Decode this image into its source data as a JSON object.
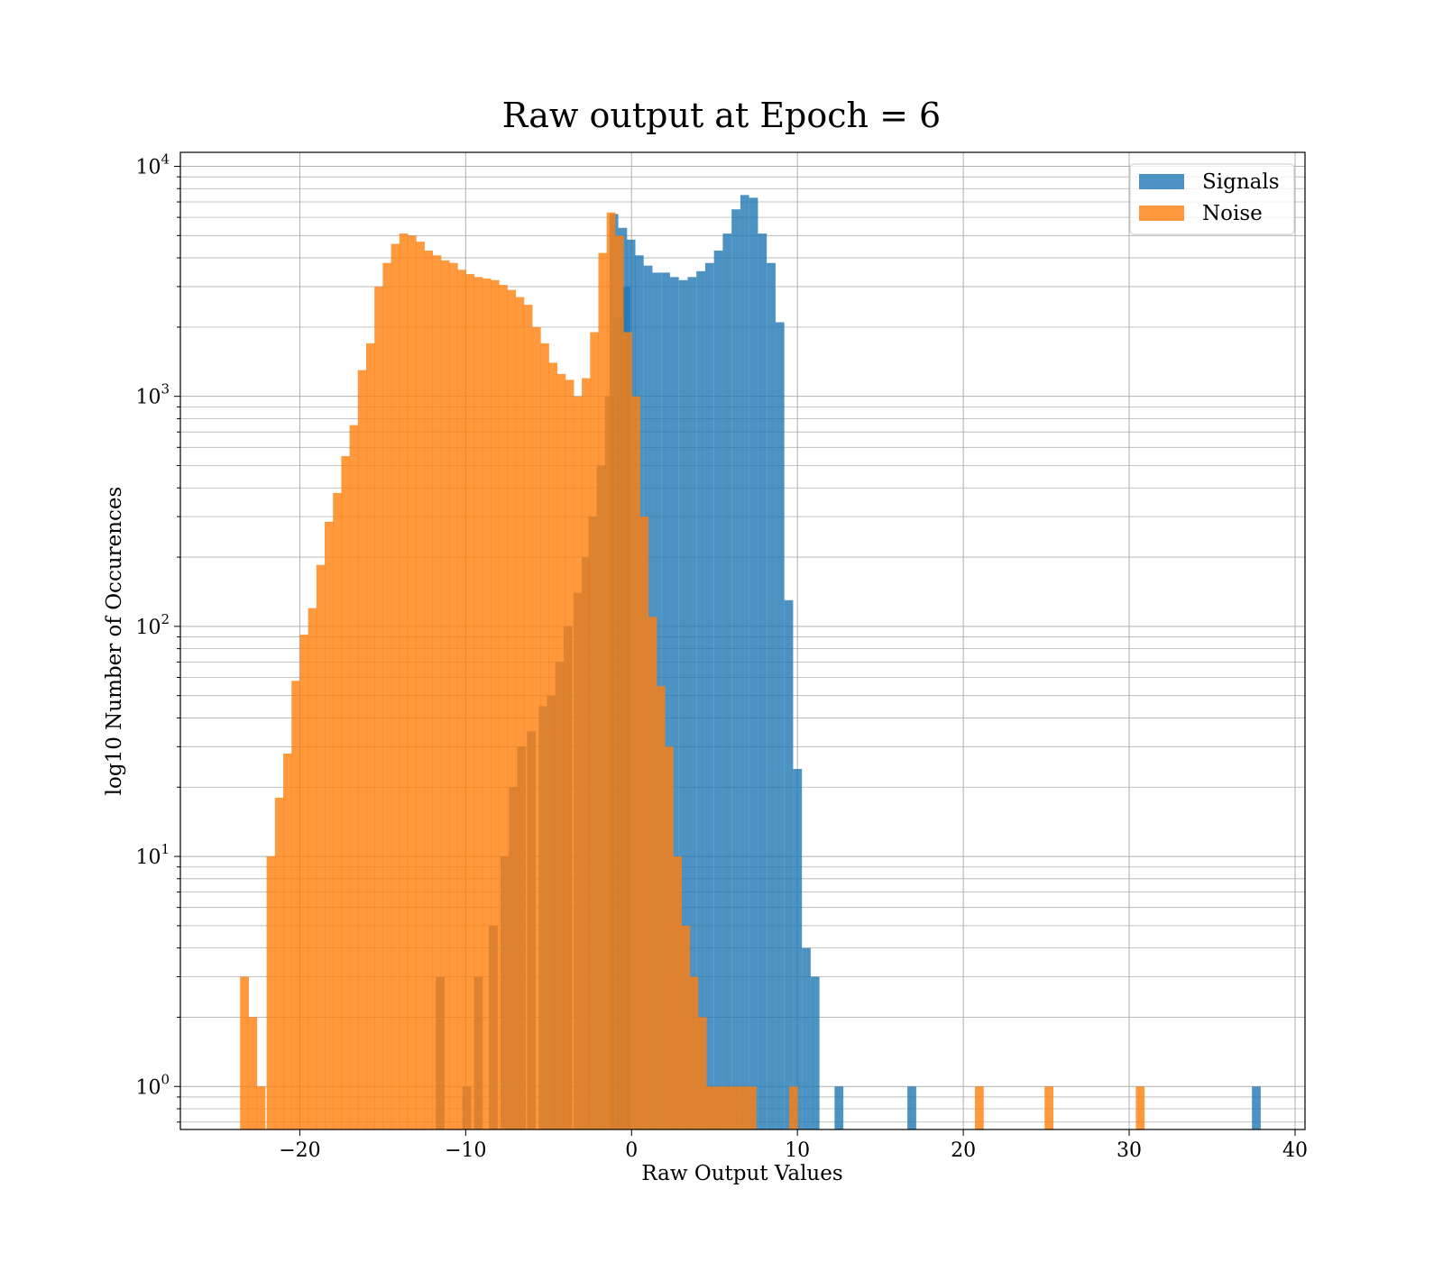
{
  "chart_data": {
    "type": "bar",
    "title": "Raw output at Epoch = 6",
    "xlabel": "Raw Output Values",
    "ylabel": "log10 Number of Occurences",
    "xlim": [
      -27.2,
      40.6
    ],
    "ylim": [
      0.65,
      11500
    ],
    "yscale": "log",
    "grid": true,
    "legend_position": "top-right",
    "x_ticks": [
      -20,
      -10,
      0,
      10,
      20,
      30,
      40
    ],
    "y_ticks": [
      {
        "value": 1,
        "base": "10",
        "exp": "0"
      },
      {
        "value": 10,
        "base": "10",
        "exp": "1"
      },
      {
        "value": 100,
        "base": "10",
        "exp": "2"
      },
      {
        "value": 1000,
        "base": "10",
        "exp": "3"
      },
      {
        "value": 10000,
        "base": "10",
        "exp": "4"
      }
    ],
    "series": [
      {
        "name": "Signals",
        "color": "#1f77b4",
        "opacity": 0.8,
        "bin_width": 0.53,
        "bins": [
          [
            -11.8,
            3
          ],
          [
            -10.2,
            1
          ],
          [
            -9.5,
            3
          ],
          [
            -8.6,
            5
          ],
          [
            -7.9,
            10
          ],
          [
            -7.4,
            20
          ],
          [
            -6.9,
            30
          ],
          [
            -6.3,
            35
          ],
          [
            -5.6,
            45
          ],
          [
            -5.1,
            50
          ],
          [
            -4.6,
            70
          ],
          [
            -4.1,
            100
          ],
          [
            -3.5,
            140
          ],
          [
            -3.0,
            200
          ],
          [
            -2.6,
            300
          ],
          [
            -2.1,
            500
          ],
          [
            -1.6,
            1000
          ],
          [
            -1.1,
            2200
          ],
          [
            -0.6,
            3000
          ],
          [
            -1.33,
            6200
          ],
          [
            -0.8,
            5400
          ],
          [
            -0.3,
            4800
          ],
          [
            0.2,
            4100
          ],
          [
            0.73,
            3700
          ],
          [
            1.26,
            3450
          ],
          [
            1.79,
            3450
          ],
          [
            2.32,
            3300
          ],
          [
            2.85,
            3200
          ],
          [
            3.38,
            3300
          ],
          [
            3.91,
            3500
          ],
          [
            4.44,
            3800
          ],
          [
            4.97,
            4300
          ],
          [
            5.5,
            5100
          ],
          [
            6.03,
            6500
          ],
          [
            6.56,
            7500
          ],
          [
            7.09,
            7300
          ],
          [
            7.62,
            5100
          ],
          [
            8.15,
            3800
          ],
          [
            8.68,
            2100
          ],
          [
            9.21,
            130
          ],
          [
            9.74,
            24
          ],
          [
            10.27,
            4
          ],
          [
            10.8,
            3
          ],
          [
            12.24,
            1
          ],
          [
            16.63,
            1
          ],
          [
            37.4,
            1
          ]
        ]
      },
      {
        "name": "Noise",
        "color": "#ff7f0e",
        "opacity": 0.8,
        "bin_width": 0.53,
        "bins": [
          [
            -23.6,
            3
          ],
          [
            -23.1,
            2
          ],
          [
            -22.6,
            1
          ],
          [
            -22.0,
            10
          ],
          [
            -21.5,
            18
          ],
          [
            -21.0,
            28
          ],
          [
            -20.5,
            58
          ],
          [
            -20.0,
            92
          ],
          [
            -19.5,
            120
          ],
          [
            -19.0,
            185
          ],
          [
            -18.5,
            285
          ],
          [
            -18.0,
            380
          ],
          [
            -17.5,
            550
          ],
          [
            -17.0,
            750
          ],
          [
            -16.5,
            1300
          ],
          [
            -16.0,
            1700
          ],
          [
            -15.5,
            3000
          ],
          [
            -15.0,
            3800
          ],
          [
            -14.5,
            4600
          ],
          [
            -14.0,
            5100
          ],
          [
            -13.5,
            5000
          ],
          [
            -13.0,
            4700
          ],
          [
            -12.5,
            4300
          ],
          [
            -12.0,
            4100
          ],
          [
            -11.5,
            3900
          ],
          [
            -11.0,
            3800
          ],
          [
            -10.5,
            3550
          ],
          [
            -10.0,
            3400
          ],
          [
            -9.5,
            3300
          ],
          [
            -9.0,
            3250
          ],
          [
            -8.5,
            3200
          ],
          [
            -8.0,
            3050
          ],
          [
            -7.5,
            2900
          ],
          [
            -7.0,
            2700
          ],
          [
            -6.5,
            2500
          ],
          [
            -6.0,
            2000
          ],
          [
            -5.5,
            1700
          ],
          [
            -5.0,
            1400
          ],
          [
            -4.5,
            1250
          ],
          [
            -4.0,
            1180
          ],
          [
            -3.5,
            1000
          ],
          [
            -3.0,
            1200
          ],
          [
            -2.5,
            1900
          ],
          [
            -2.0,
            4200
          ],
          [
            -1.5,
            6300
          ],
          [
            -1.0,
            5000
          ],
          [
            -0.5,
            1900
          ],
          [
            0.0,
            1000
          ],
          [
            0.5,
            300
          ],
          [
            1.0,
            110
          ],
          [
            1.5,
            55
          ],
          [
            2.0,
            30
          ],
          [
            2.5,
            10
          ],
          [
            3.0,
            5
          ],
          [
            3.5,
            3
          ],
          [
            4.0,
            2
          ],
          [
            4.5,
            1
          ],
          [
            5.0,
            1
          ],
          [
            5.5,
            1
          ],
          [
            6.0,
            1
          ],
          [
            6.5,
            1
          ],
          [
            7.0,
            1
          ],
          [
            9.5,
            1
          ],
          [
            20.7,
            1
          ],
          [
            24.9,
            1
          ],
          [
            30.4,
            1
          ]
        ]
      }
    ]
  }
}
